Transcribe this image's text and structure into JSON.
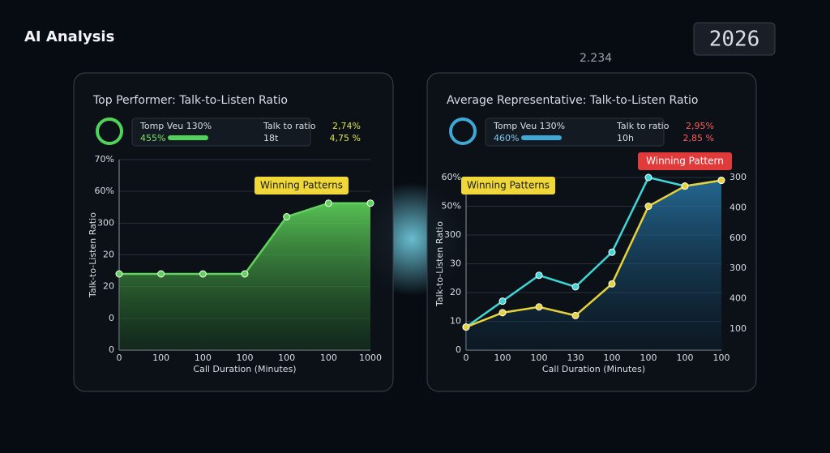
{
  "header": {
    "title": "AI Analysis",
    "year": "2026",
    "stat": "2.234"
  },
  "chart_data": [
    {
      "type": "area",
      "title": "Top Performer: Talk-to-Listen Ratio",
      "x_label": "Call Duration (Minutes)",
      "y_label": "Talk-to-Listen Ratio",
      "badge": "Winning Patterns",
      "stats": {
        "name": "Tomp Veu 130%",
        "value": "455%",
        "label_a": "Talk to ratio",
        "value_a": "2,74%",
        "label_b": "18t",
        "value_b": "4,75 %"
      },
      "categories": [
        "0",
        "100",
        "100",
        "100",
        "100",
        "100",
        "1000"
      ],
      "y_axis_labels": [
        "70%",
        "60%",
        "300",
        "20",
        "20",
        "0",
        "0"
      ],
      "ylim": [
        0,
        70
      ],
      "series": [
        {
          "color": "#5fd35a",
          "values": [
            28,
            28,
            28,
            28,
            49,
            54,
            54
          ]
        }
      ]
    },
    {
      "type": "line",
      "title": "Average Representative: Talk-to-Listen Ratio",
      "x_label": "Call Duration (Minutes)",
      "y_label": "Talk-to-Listen Ratio",
      "badge": "Winning Patterns",
      "badge2": "Winning Pattern",
      "stats": {
        "name": "Tomp Veu 130%",
        "value": "460%",
        "label_a": "Talk to ratio",
        "value_a": "2,95%",
        "label_b": "10h",
        "value_b": "2,85 %"
      },
      "categories": [
        "0",
        "100",
        "100",
        "130",
        "100",
        "100",
        "100",
        "100"
      ],
      "y_axis_labels": [
        "60%",
        "50%",
        "300",
        "30",
        "20",
        "10",
        "0"
      ],
      "y2_axis_labels": [
        "300",
        "400",
        "600",
        "300",
        "400",
        "100"
      ],
      "ylim": [
        0,
        60
      ],
      "series": [
        {
          "color": "#3fd6d6",
          "values": [
            8,
            17,
            26,
            22,
            34,
            60,
            57,
            59
          ]
        },
        {
          "color": "#e8d23a",
          "values": [
            8,
            13,
            15,
            12,
            23,
            50,
            57,
            59
          ]
        }
      ]
    }
  ]
}
